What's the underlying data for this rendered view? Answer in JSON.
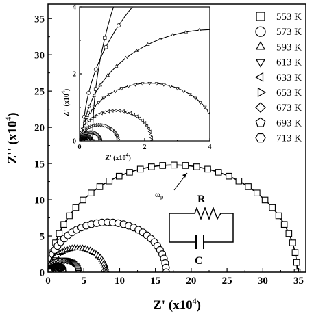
{
  "chart_data": {
    "type": "scatter",
    "xlabel": "Z' (x10",
    "xlabel_exp": "4",
    "xlabel_close": ")",
    "ylabel": "Z'' (x10",
    "ylabel_exp": "4",
    "ylabel_close": ")",
    "xlim": [
      0,
      36
    ],
    "ylim": [
      0,
      37
    ],
    "x_ticks": [
      "0",
      "5",
      "10",
      "15",
      "20",
      "25",
      "30",
      "35"
    ],
    "y_ticks": [
      "0",
      "5",
      "10",
      "15",
      "20",
      "25",
      "30",
      "35"
    ],
    "grid": false,
    "legend_position": "top-right",
    "series": [
      {
        "name": "553 K",
        "marker": "square",
        "center_x": 17.6,
        "radius": 17.2,
        "depression": 0.86
      },
      {
        "name": "573 K",
        "marker": "circle",
        "center_x": 8.3,
        "radius": 8.2,
        "depression": 0.84
      },
      {
        "name": "593 K",
        "marker": "triangle-up",
        "center_x": 4.1,
        "radius": 4.0,
        "depression": 0.83
      },
      {
        "name": "613 K",
        "marker": "triangle-down",
        "center_x": 2.15,
        "radius": 2.1,
        "depression": 0.82
      },
      {
        "name": "633 K",
        "marker": "triangle-left",
        "center_x": 1.12,
        "radius": 1.1,
        "depression": 0.82
      },
      {
        "name": "653 K",
        "marker": "triangle-right",
        "center_x": 0.6,
        "radius": 0.58,
        "depression": 0.82
      },
      {
        "name": "673 K",
        "marker": "diamond",
        "center_x": 0.33,
        "radius": 0.31,
        "depression": 0.82
      },
      {
        "name": "693 K",
        "marker": "pentagon",
        "center_x": 0.19,
        "radius": 0.18,
        "depression": 0.82
      },
      {
        "name": "713 K",
        "marker": "hexagon",
        "center_x": 0.11,
        "radius": 0.1,
        "depression": 0.82
      }
    ],
    "inset": {
      "xlim": [
        0,
        4
      ],
      "ylim": [
        0,
        4
      ],
      "x_ticks": [
        "0",
        "2",
        "4"
      ],
      "y_ticks": [
        "0",
        "2",
        "4"
      ],
      "xlabel": "Z' (x10",
      "xlabel_exp": "4",
      "xlabel_close": ")",
      "ylabel": "Z'' (x10",
      "ylabel_exp": "4",
      "ylabel_close": ")"
    },
    "annotations": {
      "peak_label": "ω",
      "peak_label_sub": "p",
      "peak_x": 17,
      "peak_y": 14.7,
      "circuit_R": "R",
      "circuit_C": "C"
    }
  }
}
